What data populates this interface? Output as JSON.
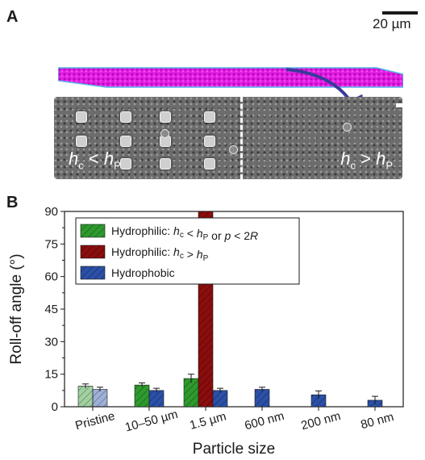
{
  "panel_a": {
    "letter": "A",
    "scale_bar_label": "20 µm",
    "sem_label_left": {
      "h": "h",
      "hsub": "c",
      "op": " < ",
      "p": "h",
      "psub": "P"
    },
    "sem_label_right": {
      "h": "h",
      "hsub": "c",
      "op": " > ",
      "p": "h",
      "psub": "P"
    },
    "colors": {
      "sheet": "#e01ee0",
      "sheet_edge": "#55b8e8",
      "arrow": "#3a3a9a",
      "sem_bg": "#6c6c6c"
    }
  },
  "panel_b": {
    "letter": "B",
    "legend": [
      {
        "parts": [
          {
            "t": "Hydrophilic: "
          },
          {
            "t": "h",
            "i": true
          },
          {
            "t": "c",
            "sub": true
          },
          {
            "t": " < "
          },
          {
            "t": "h",
            "i": true
          },
          {
            "t": "P",
            "sub": true
          },
          {
            "t": " or "
          },
          {
            "t": "p",
            "i": true
          },
          {
            "t": " < 2"
          },
          {
            "t": "R",
            "i": true
          }
        ],
        "color": "#2e9a2e"
      },
      {
        "parts": [
          {
            "t": "Hydrophilic: "
          },
          {
            "t": "h",
            "i": true
          },
          {
            "t": "c",
            "sub": true
          },
          {
            "t": " > "
          },
          {
            "t": "h",
            "i": true
          },
          {
            "t": "P",
            "sub": true
          }
        ],
        "color": "#8b0d0d"
      },
      {
        "parts": [
          {
            "t": "Hydrophobic"
          }
        ],
        "color": "#2b50a8"
      }
    ]
  },
  "chart_data": {
    "type": "bar",
    "xlabel": "Particle size",
    "ylabel": "Roll-off angle (°)",
    "ylim": [
      0,
      90
    ],
    "yticks": [
      0,
      15,
      30,
      45,
      60,
      75,
      90
    ],
    "categories": [
      "Pristine",
      "10–50 µm",
      "1.5 µm",
      "600 nm",
      "200 nm",
      "80 nm"
    ],
    "series": [
      {
        "name": "Hydrophilic: hc < hP or p < 2R",
        "color": "#2e9a2e",
        "values": [
          9.5,
          10,
          13,
          null,
          null,
          null
        ],
        "errors": [
          1,
          1,
          2,
          null,
          null,
          null
        ]
      },
      {
        "name": "Hydrophilic: hc > hP",
        "color": "#8b0d0d",
        "values": [
          null,
          null,
          90,
          null,
          null,
          null
        ],
        "errors": [
          null,
          null,
          null,
          null,
          null,
          null
        ]
      },
      {
        "name": "Hydrophobic",
        "color": "#2b50a8",
        "values": [
          8,
          7.5,
          7.5,
          8,
          5.5,
          3
        ],
        "errors": [
          1,
          1,
          1,
          1,
          1.8,
          1.8
        ]
      }
    ],
    "pristine_faded": true,
    "grid": false,
    "legend_position": "top-left"
  }
}
